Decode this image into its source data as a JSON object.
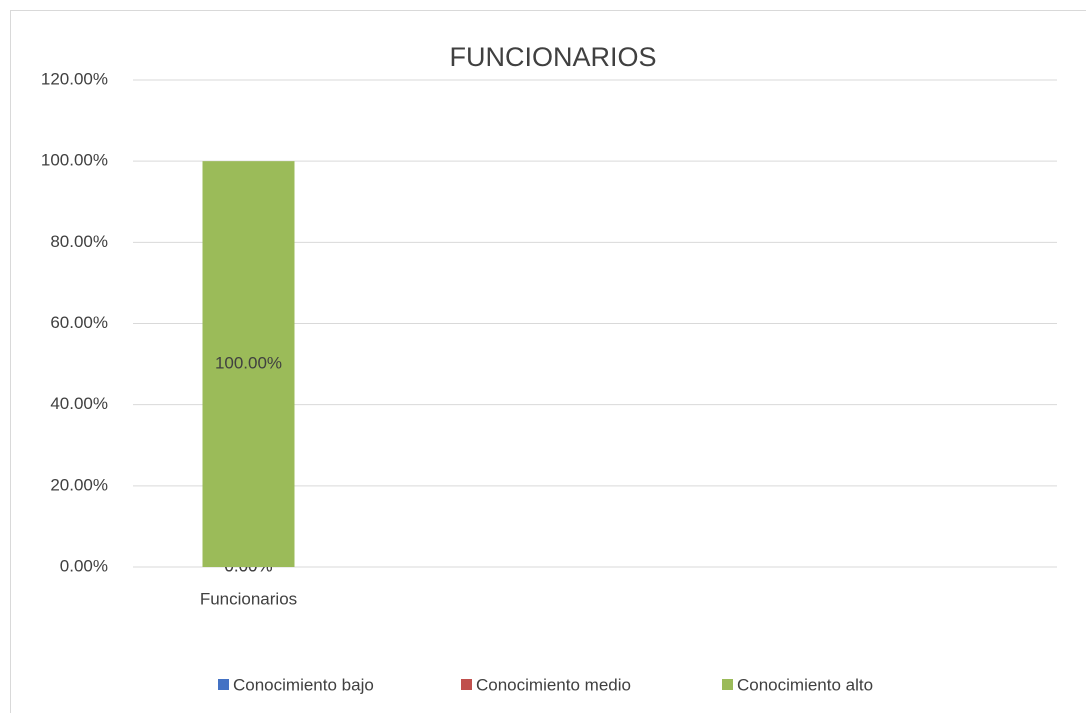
{
  "chart_data": {
    "type": "stacked_bar",
    "title": "FUNCIONARIOS",
    "categories": [
      "Funcionarios"
    ],
    "series": [
      {
        "name": "Conocimiento bajo",
        "color": "#4472c4",
        "values": [
          0
        ],
        "value_labels": [
          "0.00%"
        ]
      },
      {
        "name": "Conocimiento medio",
        "color": "#c0504d",
        "values": [
          0
        ],
        "value_labels": [
          "0.00%"
        ]
      },
      {
        "name": "Conocimiento alto",
        "color": "#9bbb59",
        "values": [
          100
        ],
        "value_labels": [
          "100.00%"
        ]
      }
    ],
    "ylim": [
      0,
      120
    ],
    "yticks": [
      {
        "value": 0,
        "label": "0.00%"
      },
      {
        "value": 20,
        "label": "20.00%"
      },
      {
        "value": 40,
        "label": "40.00%"
      },
      {
        "value": 60,
        "label": "60.00%"
      },
      {
        "value": 80,
        "label": "80.00%"
      },
      {
        "value": 100,
        "label": "100.00%"
      },
      {
        "value": 120,
        "label": "120.00%"
      }
    ],
    "grid": true,
    "legend": "bottom"
  }
}
